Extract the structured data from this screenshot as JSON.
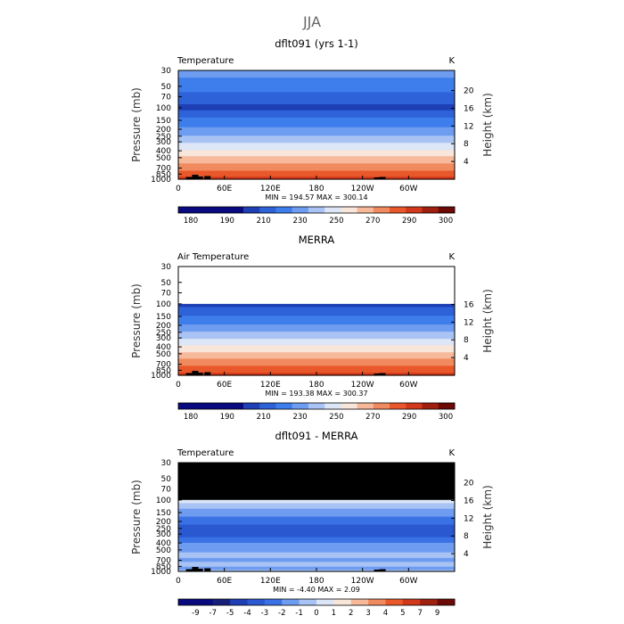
{
  "figure": {
    "season": "JJA"
  },
  "chart_data": [
    {
      "type": "heatmap",
      "title": "dflt091 (yrs 1-1)",
      "variable": "Temperature",
      "units": "K",
      "ylabel": "Pressure (mb)",
      "ylabel_right": "Height (km)",
      "xlim": [
        0,
        360
      ],
      "x_ticks": [
        "0",
        "60E",
        "120E",
        "180",
        "120W",
        "60W"
      ],
      "x_tick_values": [
        0,
        60,
        120,
        180,
        240,
        300
      ],
      "ylim": [
        1000,
        30
      ],
      "y_scale": "log",
      "p_ticks": [
        "30",
        "50",
        "70",
        "100",
        "150",
        "200",
        "250",
        "300",
        "400",
        "500",
        "700",
        "850",
        "1000"
      ],
      "p_tick_values": [
        30,
        50,
        70,
        100,
        150,
        200,
        250,
        300,
        400,
        500,
        700,
        850,
        1000
      ],
      "height_ticks": [
        "20",
        "16",
        "12",
        "8",
        "4"
      ],
      "height_tick_values": [
        20,
        16,
        12,
        8,
        4
      ],
      "profile": [
        {
          "p": 30,
          "v": 225
        },
        {
          "p": 50,
          "v": 214
        },
        {
          "p": 70,
          "v": 207
        },
        {
          "p": 100,
          "v": 197
        },
        {
          "p": 150,
          "v": 214
        },
        {
          "p": 200,
          "v": 222
        },
        {
          "p": 250,
          "v": 231
        },
        {
          "p": 300,
          "v": 238
        },
        {
          "p": 400,
          "v": 251
        },
        {
          "p": 500,
          "v": 262
        },
        {
          "p": 600,
          "v": 270
        },
        {
          "p": 700,
          "v": 277
        },
        {
          "p": 850,
          "v": 285
        },
        {
          "p": 1000,
          "v": 293
        }
      ],
      "stats_text": "MIN =  194.57   MAX =  300.14",
      "colorbar_labels": [
        "180",
        "190",
        "210",
        "230",
        "250",
        "270",
        "290",
        "300"
      ],
      "colorbar_levels": [
        175,
        180,
        185,
        190,
        200,
        210,
        220,
        230,
        240,
        250,
        260,
        270,
        280,
        290,
        295,
        300
      ]
    },
    {
      "type": "heatmap",
      "title": "MERRA",
      "variable": "Air Temperature",
      "units": "K",
      "ylabel": "Pressure (mb)",
      "ylabel_right": "Height (km)",
      "xlim": [
        0,
        360
      ],
      "x_ticks": [
        "0",
        "60E",
        "120E",
        "180",
        "120W",
        "60W"
      ],
      "x_tick_values": [
        0,
        60,
        120,
        180,
        240,
        300
      ],
      "ylim": [
        1000,
        30
      ],
      "y_scale": "log",
      "data_top_p": 100,
      "p_ticks": [
        "30",
        "50",
        "70",
        "100",
        "150",
        "200",
        "250",
        "300",
        "400",
        "500",
        "700",
        "850",
        "1000"
      ],
      "p_tick_values": [
        30,
        50,
        70,
        100,
        150,
        200,
        250,
        300,
        400,
        500,
        700,
        850,
        1000
      ],
      "height_ticks": [
        "16",
        "12",
        "8",
        "4"
      ],
      "height_tick_values": [
        16,
        12,
        8,
        4
      ],
      "profile": [
        {
          "p": 100,
          "v": 196
        },
        {
          "p": 150,
          "v": 211
        },
        {
          "p": 200,
          "v": 221
        },
        {
          "p": 250,
          "v": 231
        },
        {
          "p": 300,
          "v": 239
        },
        {
          "p": 400,
          "v": 252
        },
        {
          "p": 500,
          "v": 263
        },
        {
          "p": 600,
          "v": 271
        },
        {
          "p": 700,
          "v": 278
        },
        {
          "p": 850,
          "v": 286
        },
        {
          "p": 1000,
          "v": 294
        }
      ],
      "stats_text": "MIN =  193.38   MAX =  300.37",
      "colorbar_labels": [
        "180",
        "190",
        "210",
        "230",
        "250",
        "270",
        "290",
        "300"
      ],
      "colorbar_levels": [
        175,
        180,
        185,
        190,
        200,
        210,
        220,
        230,
        240,
        250,
        260,
        270,
        280,
        290,
        295,
        300
      ]
    },
    {
      "type": "heatmap",
      "title": "dflt091 - MERRA",
      "variable": "Temperature",
      "units": "K",
      "ylabel": "Pressure (mb)",
      "ylabel_right": "Height (km)",
      "xlim": [
        0,
        360
      ],
      "x_ticks": [
        "0",
        "60E",
        "120E",
        "180",
        "120W",
        "60W"
      ],
      "x_tick_values": [
        0,
        60,
        120,
        180,
        240,
        300
      ],
      "ylim": [
        1000,
        30
      ],
      "y_scale": "log",
      "masked_above_p": 100,
      "p_ticks": [
        "30",
        "50",
        "70",
        "100",
        "150",
        "200",
        "250",
        "300",
        "400",
        "500",
        "700",
        "850",
        "1000"
      ],
      "p_tick_values": [
        30,
        50,
        70,
        100,
        150,
        200,
        250,
        300,
        400,
        500,
        700,
        850,
        1000
      ],
      "height_ticks": [
        "20",
        "16",
        "12",
        "8",
        "4"
      ],
      "height_tick_values": [
        20,
        16,
        12,
        8,
        4
      ],
      "profile": [
        {
          "p": 100,
          "v": 0.5
        },
        {
          "p": 120,
          "v": -0.5
        },
        {
          "p": 150,
          "v": -1.5
        },
        {
          "p": 200,
          "v": -2.5
        },
        {
          "p": 250,
          "v": -3.5
        },
        {
          "p": 300,
          "v": -3.5
        },
        {
          "p": 400,
          "v": -2.0
        },
        {
          "p": 500,
          "v": -1.2
        },
        {
          "p": 600,
          "v": -0.8
        },
        {
          "p": 700,
          "v": -1.2
        },
        {
          "p": 800,
          "v": -0.5
        },
        {
          "p": 900,
          "v": -1.5
        },
        {
          "p": 1000,
          "v": -0.5
        }
      ],
      "stats_text": "MIN =   -4.40   MAX =    2.09",
      "colorbar_labels": [
        "-9",
        "-7",
        "-5",
        "-4",
        "-3",
        "-2",
        "-1",
        "0",
        "1",
        "2",
        "3",
        "4",
        "5",
        "7",
        "9"
      ],
      "colorbar_levels": [
        -9,
        -7,
        -5,
        -4,
        -3,
        -2,
        -1,
        0,
        1,
        2,
        3,
        4,
        5,
        7,
        9
      ]
    }
  ]
}
